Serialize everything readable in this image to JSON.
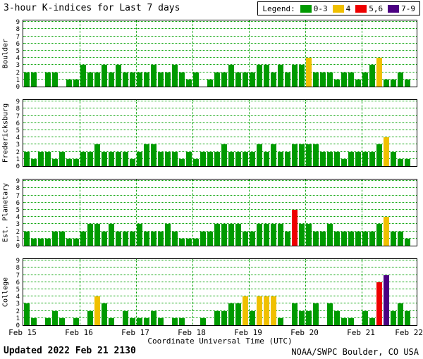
{
  "title": "3-hour K-indices for Last 7 days",
  "legend": {
    "label": "Legend:",
    "items": [
      {
        "label": "0-3",
        "color": "#009a00"
      },
      {
        "label": "4",
        "color": "#f0c000"
      },
      {
        "label": "5,6",
        "color": "#ee0000"
      },
      {
        "label": "7-9",
        "color": "#4b0082"
      }
    ]
  },
  "footer": {
    "updated": "Updated 2022 Feb 21 2130",
    "credit": "NOAA/SWPC Boulder, CO USA"
  },
  "chart_data": {
    "type": "bar",
    "title": "3-hour K-indices for Last 7 days",
    "xlabel": "Coordinate Universal Time (UTC)",
    "x_tick_labels": [
      "Feb 15",
      "Feb 16",
      "Feb 17",
      "Feb 18",
      "Feb 19",
      "Feb 20",
      "Feb 21",
      "Feb 22"
    ],
    "y_ticks": [
      0,
      1,
      2,
      3,
      4,
      5,
      6,
      7,
      8,
      9
    ],
    "ylim": [
      0,
      9
    ],
    "bars_per_day": 8,
    "bar_interval_hours": 3,
    "grid": "dotted-green",
    "legend_position": "top-right",
    "color_scale": {
      "0-3": "green",
      "4": "yellow",
      "5,6": "red",
      "7-9": "purple"
    },
    "series": [
      {
        "name": "Boulder",
        "values": [
          2,
          2,
          0,
          2,
          2,
          0,
          1,
          1,
          3,
          2,
          2,
          3,
          2,
          3,
          2,
          2,
          2,
          2,
          3,
          2,
          2,
          3,
          2,
          1,
          2,
          0,
          1,
          2,
          2,
          3,
          2,
          2,
          2,
          3,
          3,
          2,
          3,
          2,
          3,
          3,
          4,
          2,
          2,
          2,
          1,
          2,
          2,
          1,
          2,
          3,
          4,
          1,
          1,
          2,
          1
        ]
      },
      {
        "name": "Fredericksburg",
        "values": [
          2,
          1,
          2,
          2,
          1,
          2,
          1,
          1,
          2,
          2,
          3,
          2,
          2,
          2,
          2,
          1,
          2,
          3,
          3,
          2,
          2,
          2,
          1,
          2,
          1,
          2,
          2,
          2,
          3,
          2,
          2,
          2,
          2,
          3,
          2,
          3,
          2,
          2,
          3,
          3,
          3,
          3,
          2,
          2,
          2,
          1,
          2,
          2,
          2,
          2,
          3,
          4,
          2,
          1,
          1
        ]
      },
      {
        "name": "Est. Planetary",
        "values": [
          2,
          1,
          1,
          1,
          2,
          2,
          1,
          1,
          2,
          3,
          3,
          2,
          3,
          2,
          2,
          2,
          3,
          2,
          2,
          2,
          3,
          2,
          1,
          1,
          1,
          2,
          2,
          3,
          3,
          3,
          3,
          2,
          2,
          3,
          3,
          3,
          3,
          2,
          5,
          3,
          3,
          2,
          2,
          3,
          2,
          2,
          2,
          2,
          2,
          2,
          3,
          4,
          2,
          2,
          1
        ]
      },
      {
        "name": "College",
        "values": [
          3,
          1,
          0,
          1,
          2,
          1,
          0,
          1,
          0,
          2,
          4,
          3,
          1,
          0,
          2,
          1,
          1,
          1,
          2,
          1,
          0,
          1,
          1,
          0,
          0,
          1,
          0,
          2,
          2,
          3,
          3,
          4,
          2,
          4,
          4,
          4,
          1,
          0,
          3,
          2,
          2,
          3,
          0,
          3,
          2,
          1,
          1,
          0,
          2,
          1,
          6,
          7,
          2,
          3,
          2
        ]
      }
    ]
  }
}
